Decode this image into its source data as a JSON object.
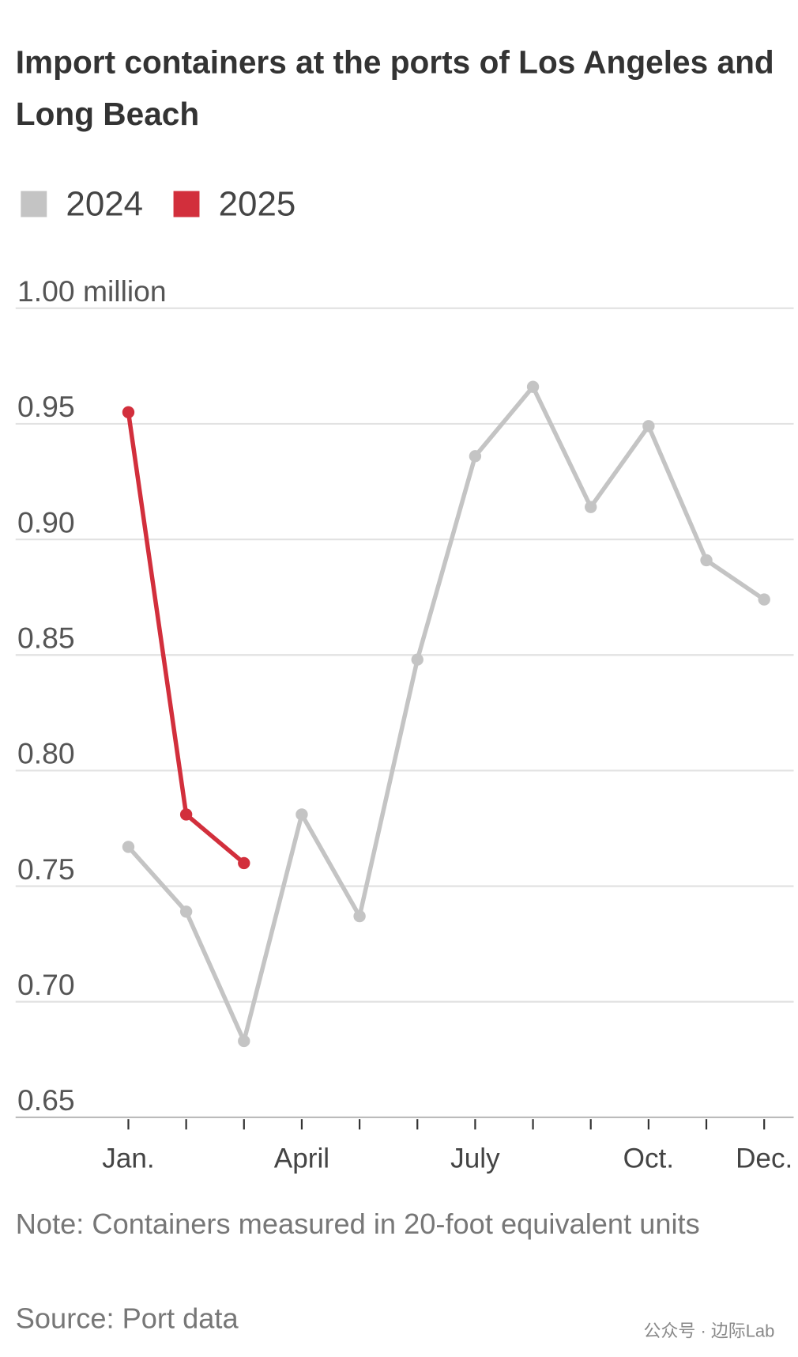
{
  "chart_data": {
    "type": "line",
    "title": "Import containers at the ports of Los Angeles and Long Beach",
    "categories": [
      "Jan.",
      null,
      null,
      "April",
      null,
      null,
      "July",
      null,
      null,
      "Oct.",
      null,
      "Dec."
    ],
    "series": [
      {
        "name": "2024",
        "color": "#c4c4c4",
        "values": [
          0.767,
          0.739,
          0.683,
          0.781,
          0.737,
          0.848,
          0.936,
          0.966,
          0.914,
          0.949,
          0.891,
          0.874
        ]
      },
      {
        "name": "2025",
        "color": "#d22f3c",
        "values": [
          0.955,
          0.781,
          0.76,
          null,
          null,
          null,
          null,
          null,
          null,
          null,
          null,
          null
        ]
      }
    ],
    "ylim": [
      0.65,
      1.0
    ],
    "yticks": [
      0.65,
      {
        "value": 0.7,
        "label": "0.70"
      },
      0.75,
      {
        "value": 0.8,
        "label": "0.80"
      },
      0.85,
      {
        "value": 0.9,
        "label": "0.90"
      },
      0.95,
      {
        "value": 1.0,
        "label": "1.00 million"
      }
    ],
    "grid": true,
    "legend": "top-left",
    "note": "Note: Containers measured in 20-foot equivalent units",
    "source": "Source: Port data",
    "watermark": "公众号 · 边际Lab"
  }
}
